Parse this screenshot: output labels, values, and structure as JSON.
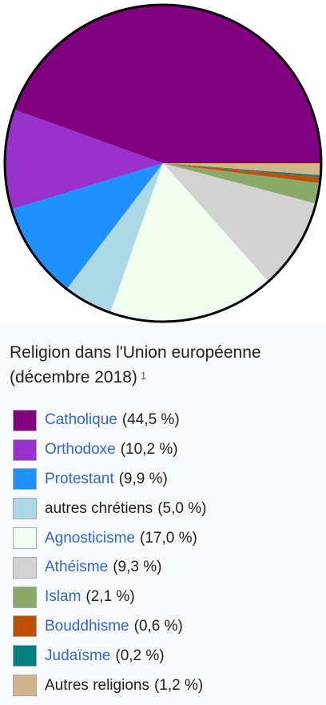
{
  "chart_data": {
    "type": "pie",
    "title": "Religion dans l'Union européenne (décembre 2018)",
    "title_ref": "1",
    "slices": [
      {
        "label": "Catholique",
        "value": 44.5,
        "value_text": "(44,5 %)",
        "color": "#800080",
        "linked": true
      },
      {
        "label": "Orthodoxe",
        "value": 10.2,
        "value_text": "(10,2 %)",
        "color": "#9932cc",
        "linked": true
      },
      {
        "label": "Protestant",
        "value": 9.9,
        "value_text": "(9,9 %)",
        "color": "#1e90ff",
        "linked": true
      },
      {
        "label": "autres chrétiens",
        "value": 5.0,
        "value_text": "(5,0 %)",
        "color": "#add8e6",
        "linked": false
      },
      {
        "label": "Agnosticisme",
        "value": 17.0,
        "value_text": "(17,0 %)",
        "color": "#f0fff0",
        "linked": true
      },
      {
        "label": "Athéisme",
        "value": 9.3,
        "value_text": "(9,3 %)",
        "color": "#d3d3d3",
        "linked": true
      },
      {
        "label": "Islam",
        "value": 2.1,
        "value_text": "(2,1 %)",
        "color": "#8aaa6a",
        "linked": true
      },
      {
        "label": "Bouddhisme",
        "value": 0.6,
        "value_text": "(0,6 %)",
        "color": "#c05000",
        "linked": true
      },
      {
        "label": "Judaïsme",
        "value": 0.2,
        "value_text": "(0,2 %)",
        "color": "#008080",
        "linked": true
      },
      {
        "label": "Autres religions",
        "value": 1.2,
        "value_text": "(1,2 %)",
        "color": "#d2b48c",
        "linked": false
      }
    ],
    "legend_position": "bottom"
  }
}
